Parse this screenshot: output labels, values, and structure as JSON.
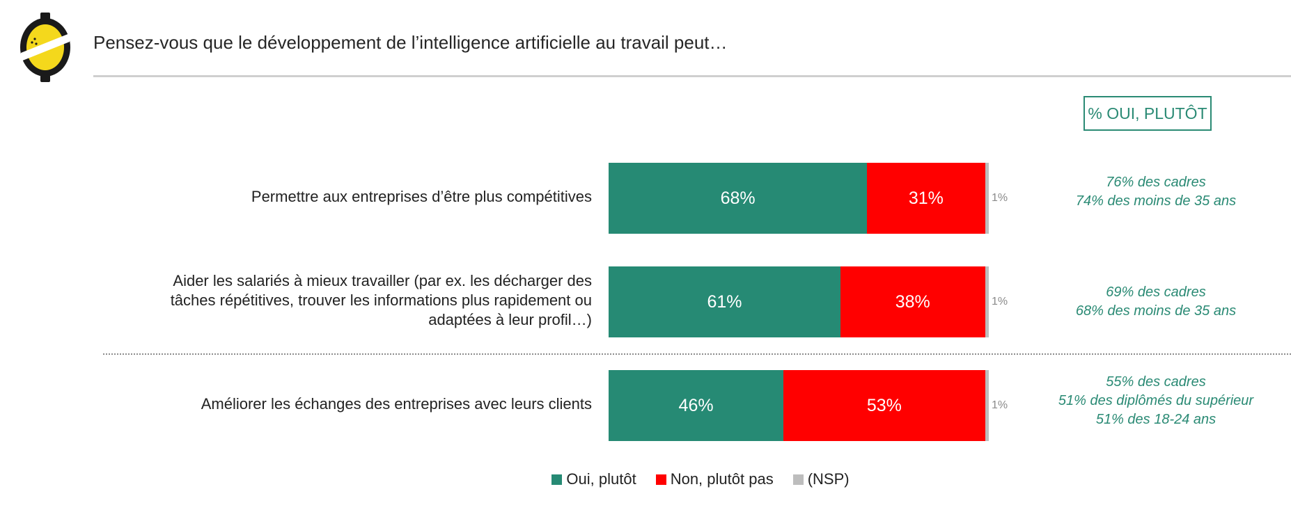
{
  "header": {
    "title": "Pensez-vous que le développement de l’intelligence artificielle au travail peut…"
  },
  "focus_badge": "% OUI, PLUTÔT",
  "colors": {
    "oui": "#268a74",
    "non": "#ff0000",
    "nsp": "#bdbdbd",
    "accent": "#2a8a74"
  },
  "chart_data": {
    "type": "bar",
    "orientation": "horizontal",
    "stacked": true,
    "title": "",
    "categories": [
      "Permettre aux entreprises d’être plus compétitives",
      "Aider les salariés à mieux travailler (par ex. les décharger des tâches répétitives, trouver les informations plus rapidement ou adaptées à leur profil…)",
      "Améliorer les échanges des entreprises avec leurs clients"
    ],
    "series": [
      {
        "name": "Oui, plutôt",
        "values": [
          68,
          61,
          46
        ],
        "labels": [
          "68%",
          "61%",
          "46%"
        ]
      },
      {
        "name": "Non, plutôt pas",
        "values": [
          31,
          38,
          53
        ],
        "labels": [
          "31%",
          "38%",
          "53%"
        ]
      },
      {
        "name": "(NSP)",
        "values": [
          1,
          1,
          1
        ],
        "labels": [
          "1%",
          "1%",
          "1%"
        ]
      }
    ],
    "annotations": [
      [
        "76% des cadres",
        "74% des moins de 35 ans"
      ],
      [
        "69% des cadres",
        "68% des moins de 35 ans"
      ],
      [
        "55% des cadres",
        "51% des diplômés du supérieur",
        "51% des 18-24 ans"
      ]
    ],
    "xlim": [
      0,
      100
    ],
    "legend_position": "bottom"
  }
}
